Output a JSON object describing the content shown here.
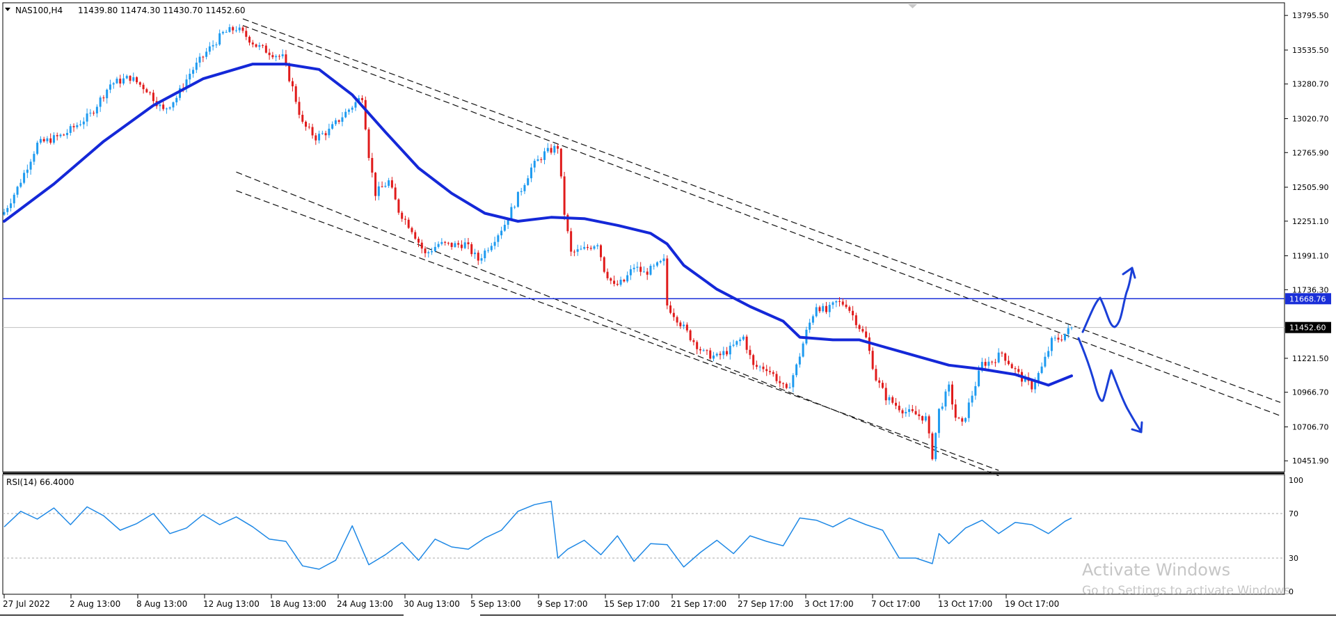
{
  "header": {
    "symbol": "NAS100,H4",
    "ohlc": "11439.80 11474.30 11430.70 11452.60"
  },
  "rsi_header": "RSI(14) 66.4000",
  "watermark": {
    "line1": "Activate Windows",
    "line2": "Go to Settings to activate Windows."
  },
  "colors": {
    "bull": "#1e9bf0",
    "bear": "#e01b1b",
    "ma": "#1428d8",
    "level_line": "#1a2fd8",
    "rsi_line": "#1e88e5",
    "annotation": "#1a3fd8"
  },
  "chart_data": [
    {
      "type": "candlestick",
      "title": "NAS100,H4",
      "price_axis_ticks": [
        "13795.50",
        "13535.50",
        "13280.70",
        "13020.70",
        "12765.90",
        "12505.90",
        "12251.10",
        "11991.10",
        "11736.30",
        "11221.50",
        "10966.70",
        "10706.70",
        "10451.90"
      ],
      "ylim": [
        10380,
        13880
      ],
      "time_axis_labels": [
        "27 Jul 2022",
        "2 Aug 13:00",
        "8 Aug 13:00",
        "12 Aug 13:00",
        "18 Aug 13:00",
        "24 Aug 13:00",
        "30 Aug 13:00",
        "5 Sep 13:00",
        "9 Sep 17:00",
        "15 Sep 17:00",
        "21 Sep 17:00",
        "27 Sep 17:00",
        "3 Oct 17:00",
        "7 Oct 17:00",
        "13 Oct 17:00",
        "19 Oct 17:00"
      ],
      "current_price": "11452.60",
      "horizontal_level": "11668.76",
      "close_path": [
        [
          0,
          12320
        ],
        [
          4,
          12500
        ],
        [
          10,
          12830
        ],
        [
          18,
          12900
        ],
        [
          26,
          13050
        ],
        [
          32,
          13280
        ],
        [
          38,
          13330
        ],
        [
          43,
          13240
        ],
        [
          48,
          13080
        ],
        [
          52,
          13180
        ],
        [
          56,
          13360
        ],
        [
          61,
          13520
        ],
        [
          66,
          13660
        ],
        [
          70,
          13700
        ],
        [
          73,
          13640
        ],
        [
          76,
          13570
        ],
        [
          80,
          13520
        ],
        [
          84,
          13480
        ],
        [
          87,
          13250
        ],
        [
          90,
          12980
        ],
        [
          94,
          12880
        ],
        [
          98,
          12930
        ],
        [
          102,
          13040
        ],
        [
          106,
          13140
        ],
        [
          108,
          13190
        ],
        [
          110,
          12750
        ],
        [
          112,
          12460
        ],
        [
          116,
          12550
        ],
        [
          119,
          12330
        ],
        [
          123,
          12190
        ],
        [
          127,
          12000
        ],
        [
          131,
          12080
        ],
        [
          135,
          12070
        ],
        [
          139,
          12080
        ],
        [
          143,
          11960
        ],
        [
          147,
          12090
        ],
        [
          151,
          12230
        ],
        [
          155,
          12440
        ],
        [
          159,
          12650
        ],
        [
          163,
          12760
        ],
        [
          167,
          12810
        ],
        [
          169,
          12310
        ],
        [
          171,
          12010
        ],
        [
          175,
          12040
        ],
        [
          179,
          12090
        ],
        [
          181,
          11890
        ],
        [
          184,
          11760
        ],
        [
          187,
          11800
        ],
        [
          190,
          11910
        ],
        [
          193,
          11860
        ],
        [
          196,
          11900
        ],
        [
          199,
          11950
        ],
        [
          200,
          11620
        ],
        [
          203,
          11520
        ],
        [
          207,
          11380
        ],
        [
          211,
          11260
        ],
        [
          215,
          11230
        ],
        [
          219,
          11290
        ],
        [
          223,
          11380
        ],
        [
          226,
          11160
        ],
        [
          230,
          11150
        ],
        [
          233,
          11070
        ],
        [
          236,
          10970
        ],
        [
          239,
          11160
        ],
        [
          242,
          11420
        ],
        [
          245,
          11620
        ],
        [
          248,
          11570
        ],
        [
          251,
          11640
        ],
        [
          254,
          11630
        ],
        [
          257,
          11500
        ],
        [
          260,
          11370
        ],
        [
          263,
          11070
        ],
        [
          266,
          10930
        ],
        [
          269,
          10870
        ],
        [
          272,
          10820
        ],
        [
          275,
          10800
        ],
        [
          278,
          10770
        ],
        [
          280,
          10490
        ],
        [
          282,
          10830
        ],
        [
          285,
          11000
        ],
        [
          287,
          10780
        ],
        [
          289,
          10720
        ],
        [
          292,
          10950
        ],
        [
          295,
          11180
        ],
        [
          298,
          11200
        ],
        [
          301,
          11260
        ],
        [
          304,
          11160
        ],
        [
          307,
          11070
        ],
        [
          310,
          11010
        ],
        [
          313,
          11150
        ],
        [
          316,
          11350
        ],
        [
          319,
          11380
        ],
        [
          322,
          11452
        ]
      ],
      "ma_path": [
        [
          0,
          12250
        ],
        [
          15,
          12530
        ],
        [
          30,
          12850
        ],
        [
          45,
          13120
        ],
        [
          60,
          13320
        ],
        [
          75,
          13430
        ],
        [
          85,
          13430
        ],
        [
          95,
          13390
        ],
        [
          105,
          13200
        ],
        [
          115,
          12920
        ],
        [
          125,
          12650
        ],
        [
          135,
          12460
        ],
        [
          145,
          12310
        ],
        [
          155,
          12250
        ],
        [
          165,
          12280
        ],
        [
          175,
          12270
        ],
        [
          185,
          12220
        ],
        [
          195,
          12160
        ],
        [
          200,
          12080
        ],
        [
          205,
          11920
        ],
        [
          215,
          11740
        ],
        [
          225,
          11610
        ],
        [
          235,
          11500
        ],
        [
          240,
          11380
        ],
        [
          250,
          11360
        ],
        [
          258,
          11360
        ],
        [
          265,
          11310
        ],
        [
          275,
          11240
        ],
        [
          285,
          11170
        ],
        [
          295,
          11140
        ],
        [
          305,
          11100
        ],
        [
          315,
          11020
        ],
        [
          322,
          11090
        ]
      ],
      "channel_lines": [
        [
          [
            72,
            13770
          ],
          [
            385,
            10890
          ]
        ],
        [
          [
            72,
            13720
          ],
          [
            385,
            10790
          ]
        ],
        [
          [
            70,
            12620
          ],
          [
            300,
            10340
          ]
        ],
        [
          [
            70,
            12480
          ],
          [
            300,
            10380
          ]
        ]
      ]
    },
    {
      "type": "line",
      "title": "RSI(14) 66.4000",
      "ylim": [
        0,
        100
      ],
      "y_ticks": [
        "100",
        "70",
        "30",
        "0"
      ],
      "levels": [
        70,
        30
      ],
      "values": [
        [
          0,
          58
        ],
        [
          5,
          72
        ],
        [
          10,
          65
        ],
        [
          15,
          75
        ],
        [
          20,
          60
        ],
        [
          25,
          76
        ],
        [
          30,
          68
        ],
        [
          35,
          55
        ],
        [
          40,
          61
        ],
        [
          45,
          70
        ],
        [
          50,
          52
        ],
        [
          55,
          57
        ],
        [
          60,
          69
        ],
        [
          65,
          60
        ],
        [
          70,
          67
        ],
        [
          75,
          58
        ],
        [
          80,
          47
        ],
        [
          85,
          45
        ],
        [
          90,
          23
        ],
        [
          95,
          20
        ],
        [
          100,
          28
        ],
        [
          105,
          59
        ],
        [
          110,
          24
        ],
        [
          115,
          33
        ],
        [
          120,
          44
        ],
        [
          125,
          28
        ],
        [
          130,
          47
        ],
        [
          135,
          40
        ],
        [
          140,
          38
        ],
        [
          145,
          48
        ],
        [
          150,
          55
        ],
        [
          155,
          72
        ],
        [
          160,
          78
        ],
        [
          165,
          81
        ],
        [
          167,
          30
        ],
        [
          170,
          38
        ],
        [
          175,
          46
        ],
        [
          180,
          33
        ],
        [
          185,
          50
        ],
        [
          190,
          27
        ],
        [
          195,
          43
        ],
        [
          200,
          42
        ],
        [
          205,
          22
        ],
        [
          210,
          35
        ],
        [
          215,
          46
        ],
        [
          220,
          34
        ],
        [
          225,
          50
        ],
        [
          230,
          45
        ],
        [
          235,
          41
        ],
        [
          240,
          66
        ],
        [
          245,
          64
        ],
        [
          250,
          58
        ],
        [
          255,
          66
        ],
        [
          260,
          60
        ],
        [
          265,
          55
        ],
        [
          270,
          30
        ],
        [
          275,
          30
        ],
        [
          280,
          25
        ],
        [
          282,
          52
        ],
        [
          285,
          43
        ],
        [
          290,
          57
        ],
        [
          295,
          64
        ],
        [
          300,
          52
        ],
        [
          305,
          62
        ],
        [
          310,
          60
        ],
        [
          315,
          52
        ],
        [
          320,
          63
        ],
        [
          322,
          66
        ]
      ]
    }
  ]
}
